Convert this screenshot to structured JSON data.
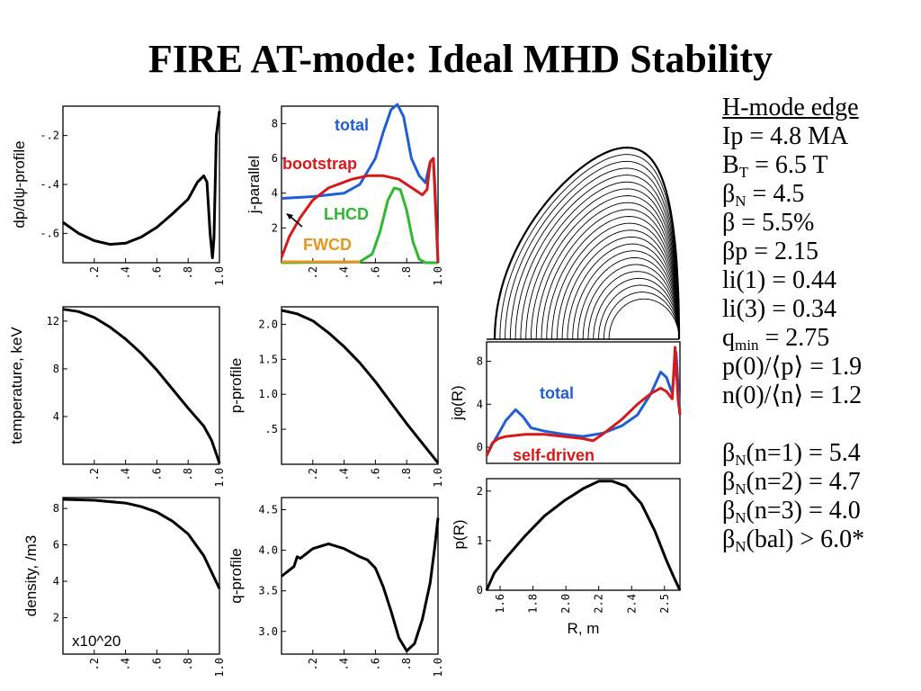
{
  "title": "FIRE AT-mode: Ideal MHD Stability",
  "panels": {
    "dpdpsi": {
      "ylabel": "dp/dψ-profile",
      "yticks": [
        "-.2",
        "-.4",
        "-.6"
      ],
      "xticks": [
        ".2",
        ".4",
        ".6",
        ".8",
        "1.0"
      ],
      "ylim": [
        -0.72,
        -0.08
      ],
      "curve": [
        [
          0,
          -0.555
        ],
        [
          0.1,
          -0.6
        ],
        [
          0.2,
          -0.63
        ],
        [
          0.3,
          -0.645
        ],
        [
          0.4,
          -0.64
        ],
        [
          0.5,
          -0.615
        ],
        [
          0.6,
          -0.575
        ],
        [
          0.7,
          -0.52
        ],
        [
          0.8,
          -0.46
        ],
        [
          0.86,
          -0.39
        ],
        [
          0.9,
          -0.365
        ],
        [
          0.92,
          -0.39
        ],
        [
          0.94,
          -0.6
        ],
        [
          0.955,
          -0.7
        ],
        [
          0.965,
          -0.62
        ],
        [
          0.98,
          -0.2
        ],
        [
          1.0,
          -0.1
        ]
      ]
    },
    "jpar": {
      "ylabel": "j-parallel",
      "yticks": [
        "8",
        "6",
        "4",
        "2"
      ],
      "xticks": [
        ".2",
        ".4",
        ".6",
        ".8",
        "1.0"
      ],
      "ylim": [
        0,
        9
      ],
      "labels": {
        "total": "total",
        "bootstrap": "bootstrap",
        "lhcd": "LHCD",
        "fwcd": "FWCD"
      },
      "colors": {
        "total": "#1f5fd6",
        "bootstrap": "#d61a1a",
        "lhcd": "#2fb82f",
        "fwcd": "#e6961e"
      },
      "total": [
        [
          0,
          3.7
        ],
        [
          0.2,
          3.8
        ],
        [
          0.4,
          4.0
        ],
        [
          0.5,
          4.5
        ],
        [
          0.6,
          6.0
        ],
        [
          0.65,
          7.5
        ],
        [
          0.7,
          8.8
        ],
        [
          0.74,
          9.1
        ],
        [
          0.78,
          8.4
        ],
        [
          0.83,
          6.0
        ],
        [
          0.88,
          5.0
        ],
        [
          0.92,
          4.6
        ],
        [
          0.95,
          5.8
        ],
        [
          0.97,
          6.0
        ],
        [
          0.98,
          4.5
        ],
        [
          1.0,
          0.0
        ]
      ],
      "bootstrap": [
        [
          0,
          0.3
        ],
        [
          0.05,
          1.5
        ],
        [
          0.12,
          2.6
        ],
        [
          0.2,
          3.6
        ],
        [
          0.3,
          4.3
        ],
        [
          0.45,
          4.8
        ],
        [
          0.55,
          5.0
        ],
        [
          0.65,
          5.0
        ],
        [
          0.75,
          4.8
        ],
        [
          0.85,
          4.2
        ],
        [
          0.9,
          3.9
        ],
        [
          0.93,
          4.2
        ],
        [
          0.95,
          5.8
        ],
        [
          0.97,
          6.0
        ],
        [
          0.985,
          3.0
        ],
        [
          1.0,
          0.0
        ]
      ],
      "lhcd": [
        [
          0,
          0
        ],
        [
          0.5,
          0.05
        ],
        [
          0.58,
          0.5
        ],
        [
          0.63,
          1.8
        ],
        [
          0.68,
          3.6
        ],
        [
          0.72,
          4.3
        ],
        [
          0.76,
          4.2
        ],
        [
          0.8,
          3.0
        ],
        [
          0.84,
          1.2
        ],
        [
          0.88,
          0.2
        ],
        [
          0.92,
          0.0
        ],
        [
          1.0,
          0.0
        ]
      ]
    },
    "temperature": {
      "ylabel": "temperature, keV",
      "yticks": [
        "12",
        "8",
        "4"
      ],
      "xticks": [
        ".2",
        ".4",
        ".6",
        ".8",
        "1.0"
      ],
      "ylim": [
        0,
        13.2
      ],
      "curve": [
        [
          0,
          13.0
        ],
        [
          0.1,
          12.8
        ],
        [
          0.2,
          12.3
        ],
        [
          0.3,
          11.5
        ],
        [
          0.4,
          10.5
        ],
        [
          0.5,
          9.3
        ],
        [
          0.6,
          7.9
        ],
        [
          0.7,
          6.3
        ],
        [
          0.8,
          4.7
        ],
        [
          0.9,
          3.2
        ],
        [
          0.95,
          2.0
        ],
        [
          1.0,
          0.1
        ]
      ]
    },
    "pprofile": {
      "ylabel": "p-profile",
      "yticks": [
        "2.0",
        "1.5",
        "1.0",
        ".5"
      ],
      "xticks": [
        ".2",
        ".4",
        ".6",
        ".8",
        "1.0"
      ],
      "ylim": [
        0,
        2.25
      ],
      "curve": [
        [
          0,
          2.2
        ],
        [
          0.1,
          2.15
        ],
        [
          0.2,
          2.05
        ],
        [
          0.3,
          1.88
        ],
        [
          0.4,
          1.68
        ],
        [
          0.5,
          1.45
        ],
        [
          0.6,
          1.18
        ],
        [
          0.7,
          0.88
        ],
        [
          0.8,
          0.58
        ],
        [
          0.9,
          0.3
        ],
        [
          0.95,
          0.16
        ],
        [
          1.0,
          0.02
        ]
      ]
    },
    "density": {
      "ylabel": "density, /m3",
      "yticks": [
        "8",
        "6",
        "4",
        "2"
      ],
      "xticks": [
        ".2",
        ".4",
        ".6",
        ".8",
        "1.0"
      ],
      "ylim": [
        0,
        8.6
      ],
      "annotation": "x10^20",
      "curve": [
        [
          0,
          8.5
        ],
        [
          0.2,
          8.45
        ],
        [
          0.4,
          8.3
        ],
        [
          0.5,
          8.1
        ],
        [
          0.6,
          7.8
        ],
        [
          0.7,
          7.3
        ],
        [
          0.8,
          6.6
        ],
        [
          0.9,
          5.4
        ],
        [
          0.95,
          4.5
        ],
        [
          1.0,
          3.6
        ]
      ]
    },
    "qprofile": {
      "ylabel": "q-profile",
      "yticks": [
        "4.5",
        "4.0",
        "3.5",
        "3.0"
      ],
      "xticks": [
        ".2",
        ".4",
        ".6",
        ".8",
        "1.0"
      ],
      "ylim": [
        2.72,
        4.65
      ],
      "curve": [
        [
          0,
          3.68
        ],
        [
          0.08,
          3.8
        ],
        [
          0.1,
          3.92
        ],
        [
          0.12,
          3.9
        ],
        [
          0.2,
          4.02
        ],
        [
          0.3,
          4.08
        ],
        [
          0.4,
          4.02
        ],
        [
          0.5,
          3.92
        ],
        [
          0.55,
          3.88
        ],
        [
          0.6,
          3.78
        ],
        [
          0.65,
          3.55
        ],
        [
          0.7,
          3.25
        ],
        [
          0.75,
          2.92
        ],
        [
          0.8,
          2.76
        ],
        [
          0.85,
          2.85
        ],
        [
          0.9,
          3.15
        ],
        [
          0.95,
          3.6
        ],
        [
          0.98,
          4.05
        ],
        [
          1.0,
          4.4
        ]
      ]
    },
    "jphi": {
      "ylabel": "jφ(R)",
      "yticks": [
        "8",
        "4",
        "0"
      ],
      "ylim": [
        -1.5,
        9.8
      ],
      "labels": {
        "total": "total",
        "selfdriven": "self-driven"
      },
      "colors": {
        "total": "#1f5fd6",
        "selfdriven": "#d61a1a"
      },
      "total": [
        [
          0,
          -0.8
        ],
        [
          0.03,
          0.3
        ],
        [
          0.06,
          1.2
        ],
        [
          0.1,
          2.5
        ],
        [
          0.15,
          3.5
        ],
        [
          0.19,
          2.8
        ],
        [
          0.23,
          1.8
        ],
        [
          0.3,
          1.5
        ],
        [
          0.4,
          1.2
        ],
        [
          0.5,
          1.0
        ],
        [
          0.6,
          1.3
        ],
        [
          0.7,
          2.0
        ],
        [
          0.78,
          3.0
        ],
        [
          0.85,
          5.0
        ],
        [
          0.9,
          7.0
        ],
        [
          0.93,
          6.5
        ],
        [
          0.96,
          5.0
        ],
        [
          0.98,
          8.8
        ],
        [
          1.0,
          3.0
        ]
      ],
      "selfdriven": [
        [
          0,
          -0.8
        ],
        [
          0.03,
          0.4
        ],
        [
          0.06,
          0.8
        ],
        [
          0.1,
          1.0
        ],
        [
          0.2,
          1.2
        ],
        [
          0.3,
          1.2
        ],
        [
          0.4,
          1.0
        ],
        [
          0.5,
          0.8
        ],
        [
          0.55,
          0.6
        ],
        [
          0.6,
          1.2
        ],
        [
          0.7,
          2.6
        ],
        [
          0.78,
          4.0
        ],
        [
          0.85,
          5.0
        ],
        [
          0.9,
          5.5
        ],
        [
          0.93,
          5.2
        ],
        [
          0.96,
          4.5
        ],
        [
          0.975,
          9.3
        ],
        [
          0.99,
          4.5
        ],
        [
          1.0,
          3.0
        ]
      ]
    },
    "pR": {
      "ylabel": "p(R)",
      "yticks": [
        "2",
        "1",
        "0"
      ],
      "xlabel": "R, m",
      "xticks": [
        "1.6",
        "1.8",
        "2.0",
        "2.2",
        "2.4",
        "2.5"
      ],
      "ylim": [
        0,
        2.25
      ],
      "curve": [
        [
          0,
          0.0
        ],
        [
          0.04,
          0.35
        ],
        [
          0.1,
          0.65
        ],
        [
          0.2,
          1.1
        ],
        [
          0.3,
          1.5
        ],
        [
          0.4,
          1.8
        ],
        [
          0.5,
          2.05
        ],
        [
          0.58,
          2.2
        ],
        [
          0.65,
          2.2
        ],
        [
          0.72,
          2.1
        ],
        [
          0.8,
          1.75
        ],
        [
          0.87,
          1.2
        ],
        [
          0.93,
          0.6
        ],
        [
          0.97,
          0.25
        ],
        [
          1.0,
          0.0
        ]
      ]
    }
  },
  "parameters": [
    {
      "main": "H-mode edge",
      "underline": true
    },
    {
      "main": "Ip = 4.8 MA"
    },
    {
      "main": "B",
      "sub": "T",
      "rest": " = 6.5 T"
    },
    {
      "main": "β",
      "sub": "N",
      "rest": " = 4.5"
    },
    {
      "main": "β = 5.5%"
    },
    {
      "main": "βp = 2.15"
    },
    {
      "main": "li(1) = 0.44"
    },
    {
      "main": "li(3) = 0.34"
    },
    {
      "main": "q",
      "sub": "min",
      "rest": " = 2.75"
    },
    {
      "main": "p(0)/⟨p⟩ = 1.9"
    },
    {
      "main": "n(0)/⟨n⟩ = 1.2"
    },
    {
      "main": ""
    },
    {
      "main": "β",
      "sub": "N",
      "rest": "(n=1) = 5.4"
    },
    {
      "main": "β",
      "sub": "N",
      "rest": "(n=2) = 4.7"
    },
    {
      "main": "β",
      "sub": "N",
      "rest": "(n=3) = 4.0"
    },
    {
      "main": "β",
      "sub": "N",
      "rest": "(bal) > 6.0*"
    }
  ]
}
